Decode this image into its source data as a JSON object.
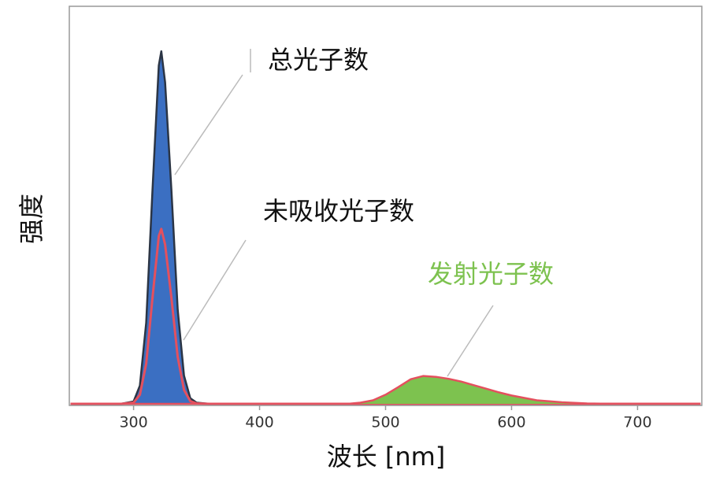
{
  "chart_data": {
    "type": "area",
    "x_label": "波长 [nm]",
    "y_label": "强度",
    "x": [
      250,
      270,
      290,
      300,
      305,
      310,
      315,
      320,
      322,
      325,
      330,
      335,
      340,
      345,
      350,
      360,
      380,
      400,
      450,
      470,
      480,
      490,
      500,
      510,
      520,
      530,
      540,
      550,
      560,
      570,
      580,
      590,
      600,
      620,
      640,
      660,
      680,
      700,
      750
    ],
    "series": [
      {
        "name": "总光子数",
        "color": "#3b6fc2",
        "stroke": "#2b3545",
        "values": [
          0,
          0,
          0,
          0.6,
          4.6,
          20.4,
          53.8,
          85.1,
          88.7,
          80.9,
          53.8,
          23.7,
          7.1,
          1.4,
          0.3,
          0,
          0,
          0,
          0,
          0,
          0,
          0,
          0,
          0,
          0,
          0,
          0,
          0,
          0,
          0,
          0,
          0,
          0,
          0,
          0,
          0,
          0,
          0,
          0
        ]
      },
      {
        "name": "未吸收光子数",
        "color": "#e4505e",
        "stroke": "#e4505e",
        "values": [
          0,
          0,
          0,
          0.3,
          2.3,
          10.1,
          26.7,
          42.2,
          44,
          40.1,
          26.7,
          11.8,
          3.5,
          0.7,
          0.1,
          0,
          0,
          0,
          0,
          0,
          0,
          0,
          0,
          0,
          0,
          0,
          0,
          0,
          0,
          0,
          0,
          0,
          0,
          0,
          0,
          0,
          0,
          0,
          0
        ]
      },
      {
        "name": "发射光子数",
        "color": "#7dc24f",
        "stroke": "#e4505e",
        "values": [
          0,
          0,
          0,
          0,
          0,
          0,
          0,
          0,
          0,
          0,
          0,
          0,
          0,
          0,
          0,
          0,
          0,
          0,
          0,
          0,
          0.3,
          0.9,
          2.3,
          4.2,
          6.2,
          7,
          6.8,
          6.3,
          5.6,
          4.7,
          3.8,
          2.9,
          2.1,
          0.9,
          0.4,
          0.1,
          0,
          0,
          0
        ]
      }
    ],
    "xlim": [
      249,
      751
    ],
    "xticks": [
      300,
      400,
      500,
      600,
      700
    ],
    "ylim": [
      0,
      100
    ]
  }
}
